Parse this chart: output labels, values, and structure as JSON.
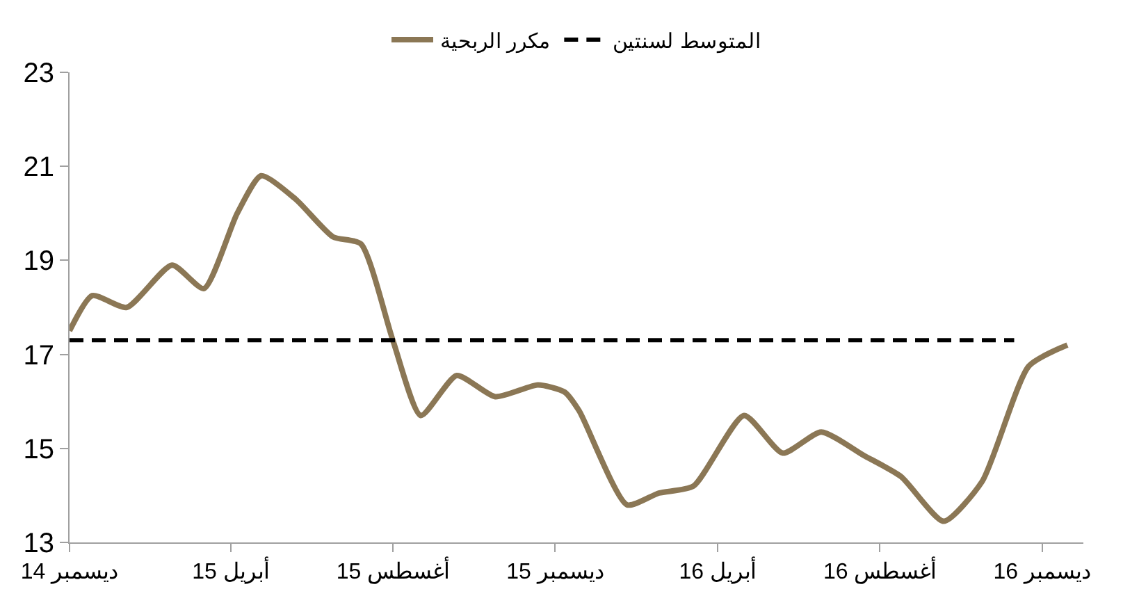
{
  "chart_data": {
    "type": "line",
    "legend": "top",
    "ylim": [
      13,
      23
    ],
    "yticks": [
      13,
      15,
      17,
      19,
      21,
      23
    ],
    "xlim": [
      "2014-12-01",
      "2017-01-01"
    ],
    "xticks": [
      {
        "value": "2014-12-01",
        "label": "ديسمبر 14"
      },
      {
        "value": "2015-04-01",
        "label": "أبريل 15"
      },
      {
        "value": "2015-08-01",
        "label": "أغسطس 15"
      },
      {
        "value": "2015-12-01",
        "label": "ديسمبر 15"
      },
      {
        "value": "2016-04-01",
        "label": "أبريل 16"
      },
      {
        "value": "2016-08-01",
        "label": "أغسطس 16"
      },
      {
        "value": "2016-12-01",
        "label": "ديسمبر 16"
      }
    ],
    "series": [
      {
        "name": "مكرر الربحية",
        "color": "#8b7755",
        "line_style": "solid",
        "x": [
          "2014-12-01",
          "2014-12-18",
          "2015-01-13",
          "2015-02-16",
          "2015-03-12",
          "2015-04-06",
          "2015-04-24",
          "2015-05-20",
          "2015-06-17",
          "2015-07-08",
          "2015-08-01",
          "2015-08-22",
          "2015-09-18",
          "2015-10-17",
          "2015-11-18",
          "2015-12-08",
          "2015-12-19",
          "2016-01-24",
          "2016-02-17",
          "2016-03-14",
          "2016-04-21",
          "2016-05-20",
          "2016-06-18",
          "2016-07-20",
          "2016-08-17",
          "2016-09-18",
          "2016-10-17",
          "2016-11-21",
          "2016-12-20"
        ],
        "values": [
          17.5,
          18.25,
          18.0,
          18.9,
          18.4,
          20.0,
          20.8,
          20.3,
          19.5,
          19.35,
          17.3,
          15.7,
          16.55,
          16.1,
          16.35,
          16.2,
          15.8,
          13.8,
          14.05,
          14.2,
          15.7,
          14.9,
          15.35,
          14.85,
          14.4,
          13.45,
          14.3,
          16.75,
          17.2
        ]
      },
      {
        "name": "المتوسط لسنتين",
        "color": "#000000",
        "line_style": "dashed",
        "x": [
          "2014-12-01",
          "2016-11-10"
        ],
        "values": [
          17.3,
          17.3
        ]
      }
    ]
  }
}
